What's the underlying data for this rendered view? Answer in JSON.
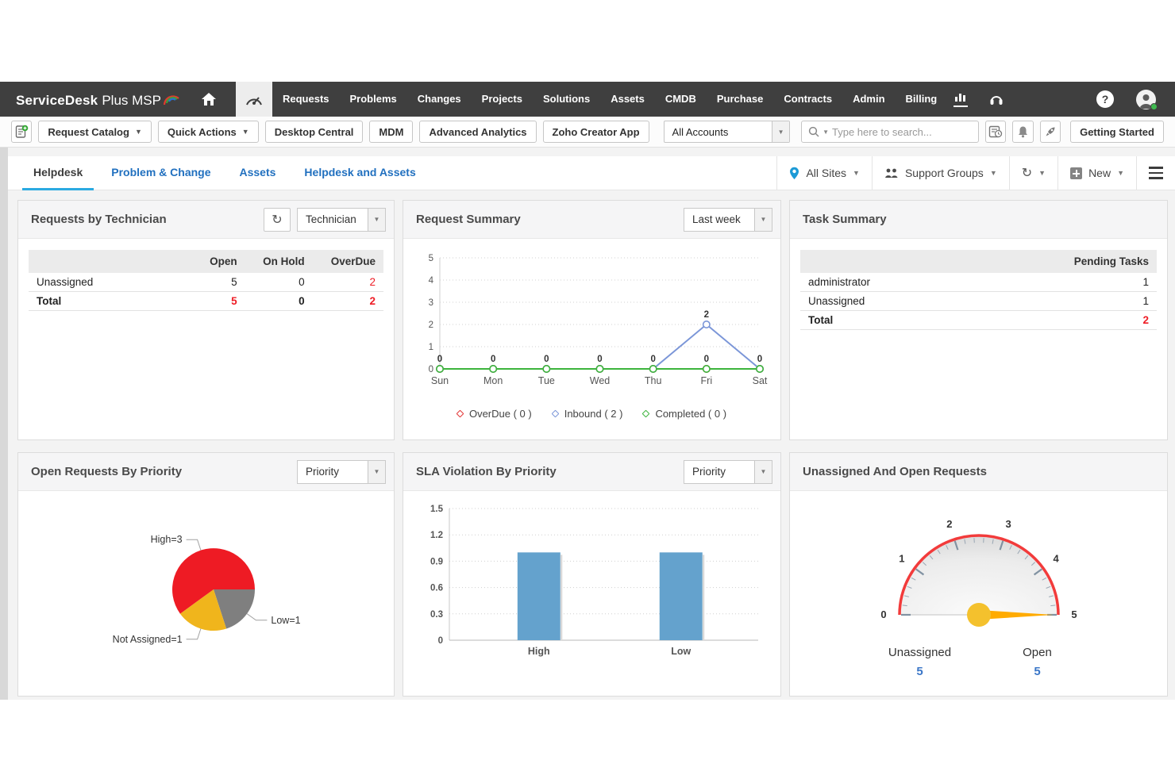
{
  "topnav": {
    "brand_bold": "ServiceDesk",
    "brand_rest": "Plus MSP",
    "menu_items": [
      "Requests",
      "Problems",
      "Changes",
      "Projects",
      "Solutions",
      "Assets",
      "CMDB",
      "Purchase",
      "Contracts",
      "Admin",
      "Billing"
    ]
  },
  "toolbar": {
    "request_catalog_label": "Request Catalog",
    "quick_actions_label": "Quick Actions",
    "link_buttons": [
      "Desktop Central",
      "MDM",
      "Advanced Analytics",
      "Zoho Creator App"
    ],
    "accounts_selected": "All Accounts",
    "search_placeholder": "Type here to search...",
    "getting_started_label": "Getting Started"
  },
  "tabbar": {
    "tabs": [
      {
        "label": "Helpdesk",
        "active": true
      },
      {
        "label": "Problem & Change",
        "active": false
      },
      {
        "label": "Assets",
        "active": false
      },
      {
        "label": "Helpdesk and Assets",
        "active": false
      }
    ],
    "all_sites_label": "All Sites",
    "support_groups_label": "Support Groups",
    "new_label": "New"
  },
  "panels": {
    "requests_by_technician": {
      "title": "Requests by Technician",
      "group_by_selected": "Technician",
      "table": {
        "columns": [
          "",
          "Open",
          "On Hold",
          "OverDue"
        ],
        "widths": [
          42,
          19,
          19,
          20
        ],
        "rows": [
          {
            "cells": [
              "Unassigned",
              "5",
              "0",
              "2"
            ],
            "classes": [
              "",
              "",
              "",
              "red"
            ],
            "bold": false
          },
          {
            "cells": [
              "Total",
              "5",
              "0",
              "2"
            ],
            "classes": [
              "",
              "red",
              "",
              "red"
            ],
            "bold": true
          }
        ]
      }
    },
    "request_summary": {
      "title": "Request Summary",
      "period_selected": "Last week"
    },
    "task_summary": {
      "title": "Task Summary",
      "table": {
        "columns": [
          "",
          "Pending Tasks"
        ],
        "widths": [
          68,
          32
        ],
        "rows": [
          {
            "cells": [
              "administrator",
              "1"
            ],
            "classes": [
              "",
              ""
            ],
            "bold": false
          },
          {
            "cells": [
              "Unassigned",
              "1"
            ],
            "classes": [
              "",
              ""
            ],
            "bold": false
          },
          {
            "cells": [
              "Total",
              "2"
            ],
            "classes": [
              "",
              "red"
            ],
            "bold": true
          }
        ]
      }
    },
    "open_requests_by_priority": {
      "title": "Open Requests By Priority",
      "group_by_selected": "Priority"
    },
    "sla_violation_by_priority": {
      "title": "SLA Violation By Priority",
      "group_by_selected": "Priority"
    },
    "unassigned_and_open_requests": {
      "title": "Unassigned And Open Requests"
    }
  },
  "colors": {
    "accent_red": "#ee1c25",
    "tab_underline": "#2baae1",
    "link_blue": "#2170bf",
    "stat_blue": "#3b77c8"
  },
  "chart_data": [
    {
      "id": "request-summary-line",
      "type": "line",
      "title": "Request Summary",
      "x": [
        "Sun",
        "Mon",
        "Tue",
        "Wed",
        "Thu",
        "Fri",
        "Sat"
      ],
      "ylim": [
        0,
        5
      ],
      "yticks": [
        0,
        1,
        2,
        3,
        4,
        5
      ],
      "grid": true,
      "legend_position": "bottom",
      "series": [
        {
          "name": "OverDue ( 0 )",
          "color": "#e23434",
          "values": [
            0,
            0,
            0,
            0,
            0,
            0,
            0
          ]
        },
        {
          "name": "Inbound ( 2 )",
          "color": "#7b96d8",
          "values": [
            0,
            0,
            0,
            0,
            0,
            2,
            0
          ]
        },
        {
          "name": "Completed ( 0 )",
          "color": "#3cb43c",
          "values": [
            0,
            0,
            0,
            0,
            0,
            0,
            0
          ]
        }
      ]
    },
    {
      "id": "open-requests-pie",
      "type": "pie",
      "title": "Open Requests By Priority",
      "start_angle_deg": 0,
      "direction": "clockwise",
      "slices": [
        {
          "label": "Low=1",
          "value": 1,
          "color": "#7f7f7f"
        },
        {
          "label": "Not Assigned=1",
          "value": 1,
          "color": "#f0b51c"
        },
        {
          "label": "High=3",
          "value": 3,
          "color": "#ee1b24"
        }
      ]
    },
    {
      "id": "sla-violation-bar",
      "type": "bar",
      "title": "SLA Violation By Priority",
      "categories": [
        "High",
        "Low"
      ],
      "values": [
        1,
        1
      ],
      "bar_color": "#64a2cd",
      "xlabel": "",
      "ylabel": "",
      "ylim": [
        0,
        1.5
      ],
      "yticks": [
        0,
        0.3,
        0.6,
        0.9,
        1.2,
        1.5
      ],
      "grid": true
    },
    {
      "id": "unassigned-open-gauge",
      "type": "gauge",
      "title": "Unassigned And Open Requests",
      "min": 0,
      "max": 5,
      "major_ticks": [
        0,
        1,
        2,
        3,
        4,
        5
      ],
      "needle_value": 5,
      "arc_color": "#f23b3b",
      "needle_color": "#ffab00",
      "hub_color": "#f4c12d",
      "stats": [
        {
          "label": "Unassigned",
          "value": "5"
        },
        {
          "label": "Open",
          "value": "5"
        }
      ]
    }
  ]
}
